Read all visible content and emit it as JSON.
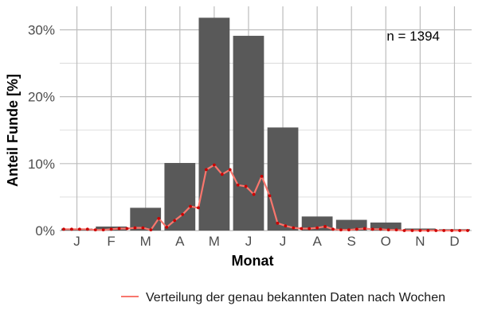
{
  "chart_data": {
    "type": "bar",
    "xlabel": "Monat",
    "ylabel": "Anteil Funde [%]",
    "categories": [
      "J",
      "F",
      "M",
      "A",
      "M",
      "J",
      "J",
      "A",
      "S",
      "O",
      "N",
      "D"
    ],
    "ylim": [
      0,
      0.335
    ],
    "y_ticks": [
      0,
      0.1,
      0.2,
      0.3
    ],
    "y_tick_labels": [
      "0%",
      "10%",
      "20%",
      "30%"
    ],
    "grid": true,
    "bar_color": "#595959",
    "annotation": "n = 1394",
    "series": [
      {
        "type": "bar",
        "values": [
          0.003,
          0.006,
          0.034,
          0.101,
          0.318,
          0.291,
          0.154,
          0.021,
          0.016,
          0.012,
          0.003,
          0.002
        ]
      },
      {
        "type": "line",
        "name": "Verteilung der genau bekannten Daten nach Wochen",
        "color": "#f8766d",
        "point_color": "#cc0000",
        "x": [
          1,
          2,
          3,
          4,
          5,
          6,
          7,
          8,
          9,
          10,
          11,
          12,
          13,
          14,
          15,
          16,
          17,
          18,
          19,
          20,
          21,
          22,
          23,
          24,
          25,
          26,
          27,
          28,
          29,
          30,
          31,
          32,
          33,
          34,
          35,
          36,
          37,
          38,
          39,
          40,
          41,
          42,
          43,
          44,
          45,
          46,
          47,
          48,
          49,
          50,
          51,
          52
        ],
        "values": [
          0.002,
          0.002,
          0.002,
          0.002,
          0.001,
          0.001,
          0.002,
          0.003,
          0.003,
          0.004,
          0.004,
          0.001,
          0.018,
          0.005,
          0.015,
          0.024,
          0.036,
          0.034,
          0.091,
          0.098,
          0.084,
          0.091,
          0.068,
          0.066,
          0.054,
          0.081,
          0.052,
          0.011,
          0.007,
          0.004,
          0.003,
          0.003,
          0.004,
          0.006,
          0.002,
          0.001,
          0.001,
          0.002,
          0.003,
          0.002,
          0.002,
          0.001,
          0.001,
          0.0,
          0.0,
          0.0,
          0.0,
          0.0,
          0.0,
          0.0,
          0.0,
          0.0
        ]
      }
    ],
    "legend": {
      "position": "bottom",
      "entries": [
        "Verteilung der genau bekannten Daten nach Wochen"
      ]
    }
  }
}
